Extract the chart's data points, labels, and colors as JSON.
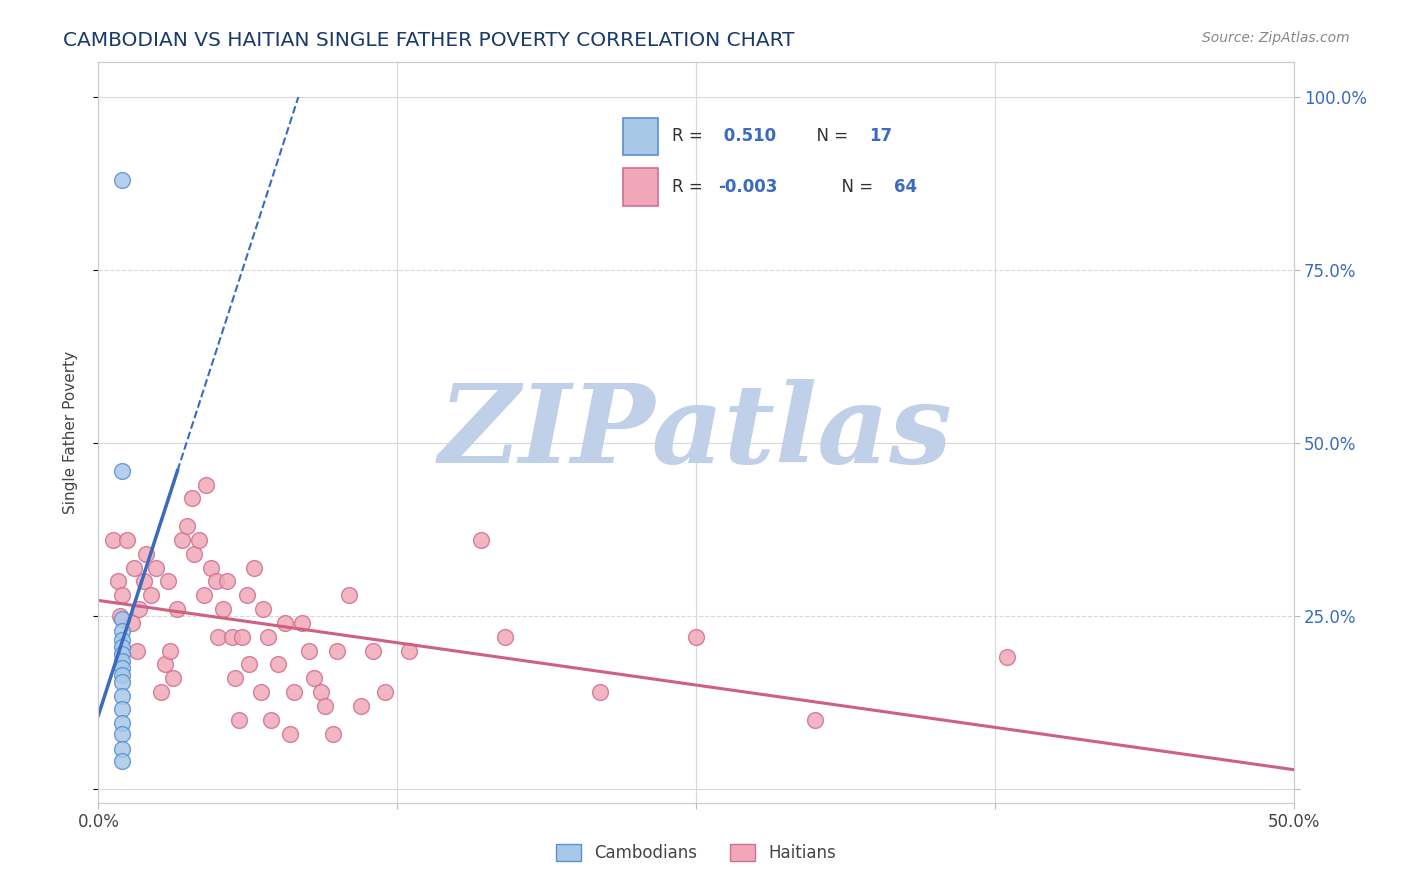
{
  "title": "CAMBODIAN VS HAITIAN SINGLE FATHER POVERTY CORRELATION CHART",
  "source": "Source: ZipAtlas.com",
  "ylabel": "Single Father Poverty",
  "xlim": [
    0.0,
    0.5
  ],
  "ylim": [
    -0.02,
    1.05
  ],
  "cambodian_dots": [
    [
      0.01,
      0.88
    ],
    [
      0.01,
      0.46
    ],
    [
      0.01,
      0.245
    ],
    [
      0.01,
      0.228
    ],
    [
      0.01,
      0.215
    ],
    [
      0.01,
      0.205
    ],
    [
      0.01,
      0.195
    ],
    [
      0.01,
      0.185
    ],
    [
      0.01,
      0.175
    ],
    [
      0.01,
      0.165
    ],
    [
      0.01,
      0.155
    ],
    [
      0.01,
      0.135
    ],
    [
      0.01,
      0.115
    ],
    [
      0.01,
      0.095
    ],
    [
      0.01,
      0.08
    ],
    [
      0.01,
      0.058
    ],
    [
      0.01,
      0.04
    ]
  ],
  "haitian_dots": [
    [
      0.006,
      0.36
    ],
    [
      0.008,
      0.3
    ],
    [
      0.009,
      0.25
    ],
    [
      0.01,
      0.28
    ],
    [
      0.012,
      0.36
    ],
    [
      0.014,
      0.24
    ],
    [
      0.015,
      0.32
    ],
    [
      0.016,
      0.2
    ],
    [
      0.017,
      0.26
    ],
    [
      0.019,
      0.3
    ],
    [
      0.02,
      0.34
    ],
    [
      0.022,
      0.28
    ],
    [
      0.024,
      0.32
    ],
    [
      0.026,
      0.14
    ],
    [
      0.028,
      0.18
    ],
    [
      0.029,
      0.3
    ],
    [
      0.03,
      0.2
    ],
    [
      0.031,
      0.16
    ],
    [
      0.033,
      0.26
    ],
    [
      0.035,
      0.36
    ],
    [
      0.037,
      0.38
    ],
    [
      0.039,
      0.42
    ],
    [
      0.04,
      0.34
    ],
    [
      0.042,
      0.36
    ],
    [
      0.044,
      0.28
    ],
    [
      0.045,
      0.44
    ],
    [
      0.047,
      0.32
    ],
    [
      0.049,
      0.3
    ],
    [
      0.05,
      0.22
    ],
    [
      0.052,
      0.26
    ],
    [
      0.054,
      0.3
    ],
    [
      0.056,
      0.22
    ],
    [
      0.057,
      0.16
    ],
    [
      0.059,
      0.1
    ],
    [
      0.06,
      0.22
    ],
    [
      0.062,
      0.28
    ],
    [
      0.063,
      0.18
    ],
    [
      0.065,
      0.32
    ],
    [
      0.068,
      0.14
    ],
    [
      0.069,
      0.26
    ],
    [
      0.071,
      0.22
    ],
    [
      0.072,
      0.1
    ],
    [
      0.075,
      0.18
    ],
    [
      0.078,
      0.24
    ],
    [
      0.08,
      0.08
    ],
    [
      0.082,
      0.14
    ],
    [
      0.085,
      0.24
    ],
    [
      0.088,
      0.2
    ],
    [
      0.09,
      0.16
    ],
    [
      0.093,
      0.14
    ],
    [
      0.095,
      0.12
    ],
    [
      0.098,
      0.08
    ],
    [
      0.1,
      0.2
    ],
    [
      0.105,
      0.28
    ],
    [
      0.11,
      0.12
    ],
    [
      0.115,
      0.2
    ],
    [
      0.12,
      0.14
    ],
    [
      0.13,
      0.2
    ],
    [
      0.16,
      0.36
    ],
    [
      0.17,
      0.22
    ],
    [
      0.21,
      0.14
    ],
    [
      0.25,
      0.22
    ],
    [
      0.3,
      0.1
    ],
    [
      0.38,
      0.19
    ]
  ],
  "blue_trend_x": [
    0.01,
    0.01
  ],
  "blue_trend_slope": 18.0,
  "blue_trend_intercept": 0.0,
  "haitian_trend_y": 0.215,
  "blue_color": "#3a6bbf",
  "blue_dot_color": "#a8c8e8",
  "blue_dot_edge": "#5a8fd0",
  "pink_color": "#d06080",
  "pink_dot_color": "#f0a8b8",
  "pink_dot_edge": "#d07090",
  "background_color": "#ffffff",
  "grid_color": "#d8d8d8",
  "grid_style_h25": "--",
  "watermark_text": "ZIPatlas",
  "watermark_color": "#c0d0e8",
  "title_color": "#1a3a6a",
  "source_color": "#888888",
  "legend_text_color_label": "#333333",
  "legend_text_color_value": "#3a6bbf"
}
